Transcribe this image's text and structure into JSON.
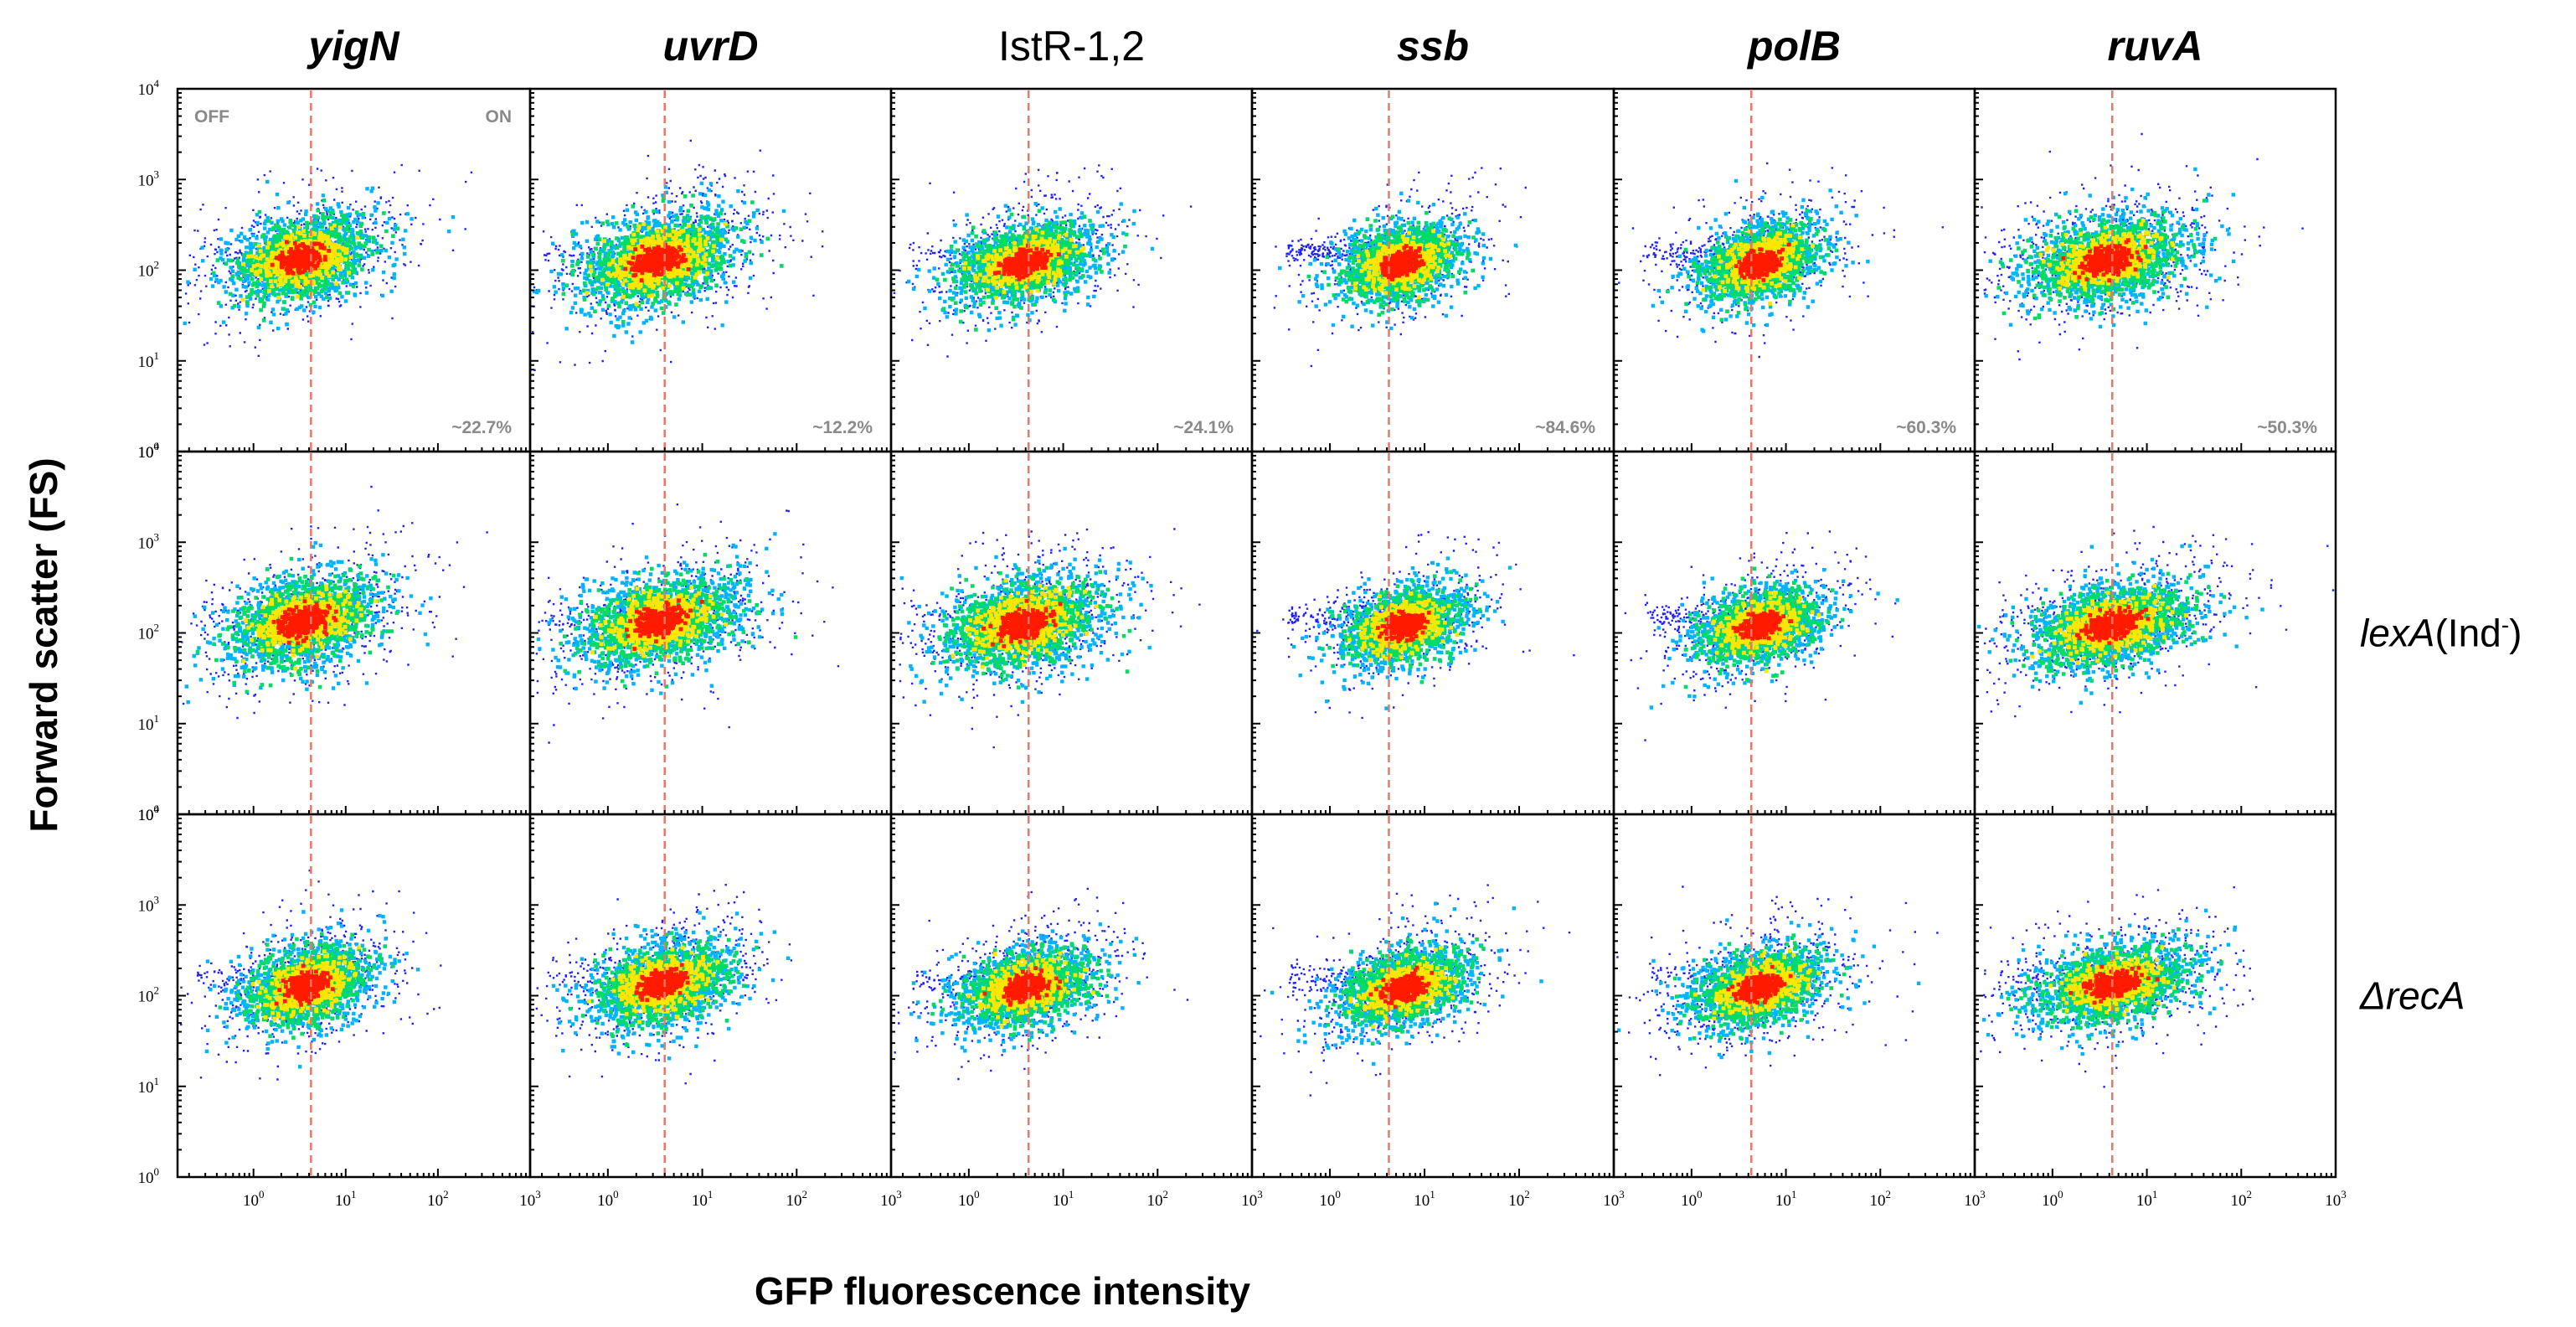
{
  "chart_data": {
    "type": "scatter",
    "subtype": "flow-cytometry density plots",
    "xlabel": "GFP fluorescence intensity",
    "ylabel": "Forward scatter (FS)",
    "xscale": "log",
    "yscale": "log",
    "xlim": [
      0.15,
      1000
    ],
    "ylim": [
      1,
      10000
    ],
    "x_ticks": [
      {
        "base": "10",
        "exp": "0"
      },
      {
        "base": "10",
        "exp": "1"
      },
      {
        "base": "10",
        "exp": "2"
      },
      {
        "base": "10",
        "exp": "3"
      }
    ],
    "y_ticks": [
      {
        "base": "10",
        "exp": "0"
      },
      {
        "base": "10",
        "exp": "1"
      },
      {
        "base": "10",
        "exp": "2"
      },
      {
        "base": "10",
        "exp": "3"
      },
      {
        "base": "10",
        "exp": "4"
      }
    ],
    "gate_labels": {
      "off": "OFF",
      "on": "ON"
    },
    "columns": [
      {
        "title": "yigN",
        "italic": true,
        "gate_x": 4.2
      },
      {
        "title": "uvrD",
        "italic": true,
        "gate_x": 4.0
      },
      {
        "title": "IstR-1,2",
        "italic": false,
        "gate_x": 4.3
      },
      {
        "title": "ssb",
        "italic": true,
        "gate_x": 4.2
      },
      {
        "title": "polB",
        "italic": true,
        "gate_x": 4.3
      },
      {
        "title": "ruvA",
        "italic": true,
        "gate_x": 4.3
      }
    ],
    "rows": [
      {
        "label_main": "",
        "label_rest": "",
        "label_sup": "",
        "on_percent": [
          "~22.7%",
          "~12.2%",
          "~24.1%",
          "~84.6%",
          "~60.3%",
          "~50.3%"
        ],
        "clusters": [
          {
            "center_x": 3.2,
            "center_y": 140,
            "spread_x": 0.22,
            "spread_y": 0.13,
            "tail_x": 0.2
          },
          {
            "center_x": 3.2,
            "center_y": 135,
            "spread_x": 0.24,
            "spread_y": 0.14,
            "tail_x": 0.2
          },
          {
            "center_x": 3.6,
            "center_y": 125,
            "spread_x": 0.22,
            "spread_y": 0.12,
            "tail_x": 0.5
          },
          {
            "center_x": 5.4,
            "center_y": 125,
            "spread_x": 0.19,
            "spread_y": 0.12,
            "tail_x": 1.5
          },
          {
            "center_x": 5.0,
            "center_y": 125,
            "spread_x": 0.19,
            "spread_y": 0.12,
            "tail_x": 1.0
          },
          {
            "center_x": 3.6,
            "center_y": 135,
            "spread_x": 0.25,
            "spread_y": 0.13,
            "tail_x": 0.2
          }
        ]
      },
      {
        "label_main": "lexA",
        "label_rest": "(Ind",
        "label_sup": "-",
        "on_percent": [
          "",
          "",
          "",
          "",
          "",
          ""
        ],
        "clusters": [
          {
            "center_x": 3.4,
            "center_y": 140,
            "spread_x": 0.24,
            "spread_y": 0.14,
            "tail_x": 0.2
          },
          {
            "center_x": 3.3,
            "center_y": 140,
            "spread_x": 0.25,
            "spread_y": 0.14,
            "tail_x": 0.2
          },
          {
            "center_x": 3.6,
            "center_y": 130,
            "spread_x": 0.25,
            "spread_y": 0.14,
            "tail_x": 0.2
          },
          {
            "center_x": 5.6,
            "center_y": 125,
            "spread_x": 0.19,
            "spread_y": 0.12,
            "tail_x": 1.2
          },
          {
            "center_x": 5.0,
            "center_y": 125,
            "spread_x": 0.19,
            "spread_y": 0.12,
            "tail_x": 0.8
          },
          {
            "center_x": 4.0,
            "center_y": 125,
            "spread_x": 0.25,
            "spread_y": 0.13,
            "tail_x": 0.3
          }
        ]
      },
      {
        "label_main": "ΔrecA",
        "label_rest": "",
        "label_sup": "",
        "on_percent": [
          "",
          "",
          "",
          "",
          "",
          ""
        ],
        "clusters": [
          {
            "center_x": 3.6,
            "center_y": 135,
            "spread_x": 0.2,
            "spread_y": 0.13,
            "tail_x": 0.5
          },
          {
            "center_x": 3.6,
            "center_y": 140,
            "spread_x": 0.22,
            "spread_y": 0.13,
            "tail_x": 0.4
          },
          {
            "center_x": 3.8,
            "center_y": 130,
            "spread_x": 0.21,
            "spread_y": 0.12,
            "tail_x": 0.5
          },
          {
            "center_x": 5.8,
            "center_y": 130,
            "spread_x": 0.2,
            "spread_y": 0.12,
            "tail_x": 0.9
          },
          {
            "center_x": 5.0,
            "center_y": 130,
            "spread_x": 0.21,
            "spread_y": 0.12,
            "tail_x": 0.4
          },
          {
            "center_x": 4.2,
            "center_y": 140,
            "spread_x": 0.24,
            "spread_y": 0.12,
            "tail_x": 0.3
          }
        ]
      }
    ]
  },
  "colors": {
    "density_low": "#2020ff",
    "density_mid_low": "#00b4ff",
    "density_mid": "#00dc64",
    "density_mid_high": "#ffe600",
    "density_high": "#ff1a00",
    "gate_line": "#e8776a",
    "annotation_text": "#8a8a8a",
    "frame": "#000000"
  }
}
